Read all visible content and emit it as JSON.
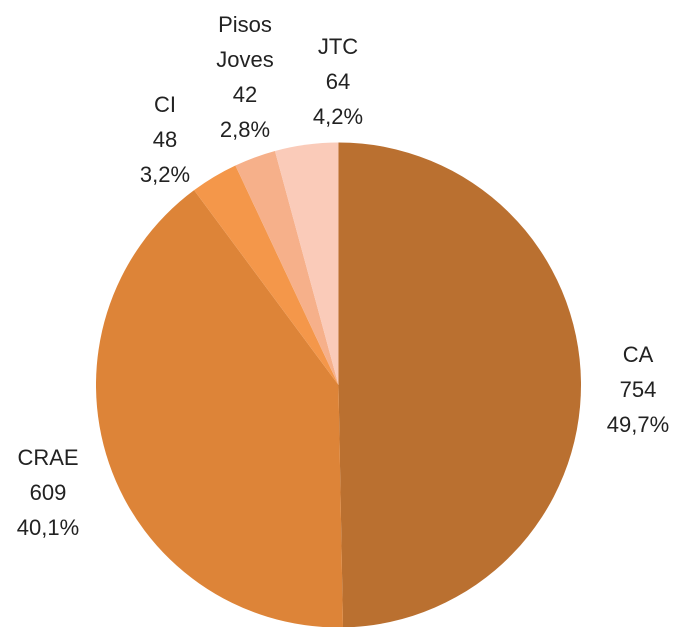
{
  "chart_data": {
    "type": "pie",
    "categories": [
      "CA",
      "CRAE",
      "CI",
      "Pisos Joves",
      "JTC"
    ],
    "values": [
      754,
      609,
      48,
      42,
      64
    ],
    "percentages": [
      49.7,
      40.1,
      3.2,
      2.8,
      4.2
    ],
    "percentage_labels": [
      "49,7%",
      "40,1%",
      "3,2%",
      "2,8%",
      "4,2%"
    ],
    "colors": [
      "#BA7030",
      "#DD8438",
      "#F4974A",
      "#F6B08A",
      "#FACBB9"
    ]
  }
}
